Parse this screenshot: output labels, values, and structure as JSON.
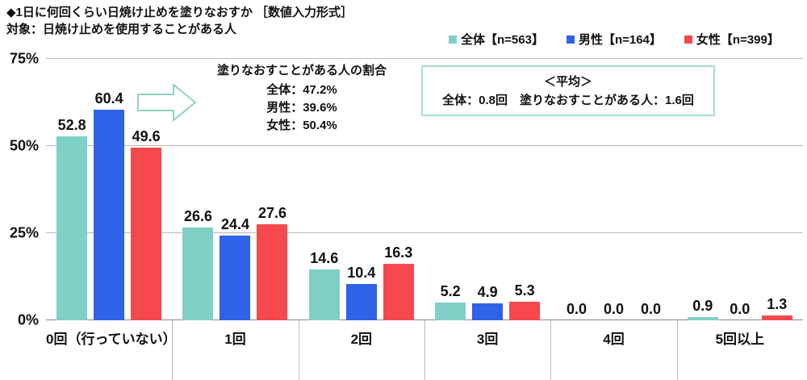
{
  "header": {
    "title": "◆1日に何回くらい日焼け止めを塗りなおすか ［数値入力形式］",
    "subtitle": "対象：日焼け止めを使用することがある人"
  },
  "legend": {
    "items": [
      {
        "label": "全体【n=563】",
        "color": "#7fd0c6"
      },
      {
        "label": "男性【n=164】",
        "color": "#2f62e6"
      },
      {
        "label": "女性【n=399】",
        "color": "#f5494d"
      }
    ]
  },
  "annotation": {
    "title": "塗りなおすことがある人の割合",
    "lines": [
      "全体：47.2%",
      "男性：39.6%",
      "女性：50.4%"
    ],
    "arrow_icon": "right-block-arrow",
    "arrow_color": "#8ed2c6"
  },
  "average_box": {
    "title": "＜平均＞",
    "text": "全体：0.8回　塗りなおすことがある人：1.6回",
    "border_color": "#a7dcd2"
  },
  "chart_data": {
    "type": "bar",
    "title": "1日に何回くらい日焼け止めを塗りなおすか",
    "categories": [
      "0回（行っていない）",
      "1回",
      "2回",
      "3回",
      "4回",
      "5回以上"
    ],
    "series": [
      {
        "name": "全体【n=563】",
        "color": "#7fd0c6",
        "values": [
          52.8,
          26.6,
          14.6,
          5.2,
          0.0,
          0.9
        ]
      },
      {
        "name": "男性【n=164】",
        "color": "#2f62e6",
        "values": [
          60.4,
          24.4,
          10.4,
          4.9,
          0.0,
          0.0
        ]
      },
      {
        "name": "女性【n=399】",
        "color": "#f5494d",
        "values": [
          49.6,
          27.6,
          16.3,
          5.3,
          0.0,
          1.3
        ]
      }
    ],
    "ylim": [
      0,
      75
    ],
    "yticks": [
      0,
      25,
      50,
      75
    ],
    "ytick_labels": [
      "0%",
      "25%",
      "50%",
      "75%"
    ],
    "ylabel": "",
    "xlabel": "",
    "grid": true,
    "legend_position": "top-right",
    "value_labels": true,
    "value_label_format": "one-decimal"
  }
}
